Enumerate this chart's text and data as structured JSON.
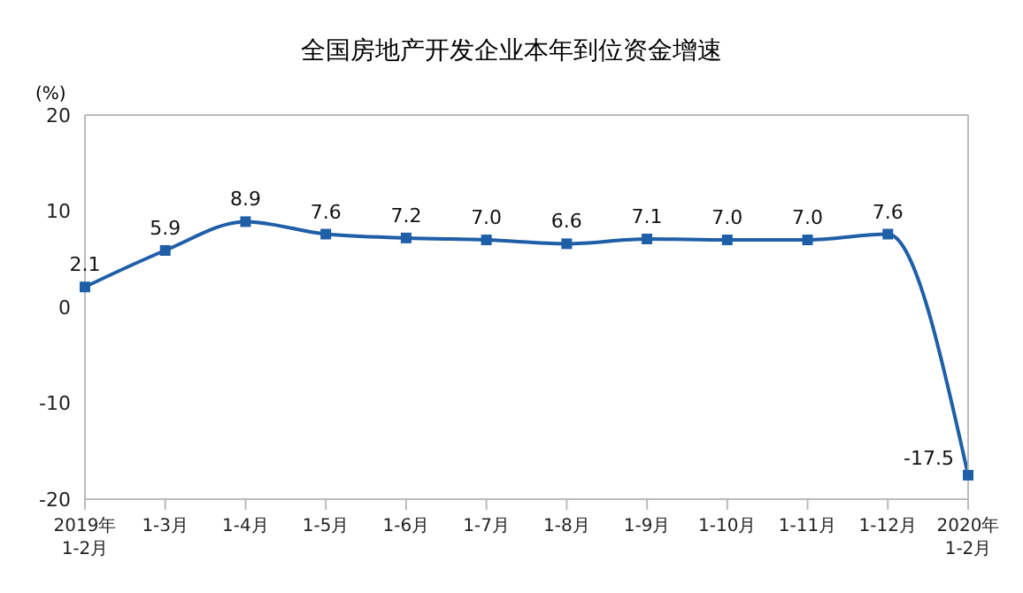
{
  "chart_data": {
    "type": "line",
    "title": "全国房地产开发企业本年到位资金增速",
    "ylabel": "(%)",
    "categories": [
      "2019年\n1-2月",
      "1-3月",
      "1-4月",
      "1-5月",
      "1-6月",
      "1-7月",
      "1-8月",
      "1-9月",
      "1-10月",
      "1-11月",
      "1-12月",
      "2020年\n1-2月"
    ],
    "series": [
      {
        "color": "#1f5fa8",
        "values": [
          2.1,
          5.9,
          8.9,
          7.6,
          7.2,
          7.0,
          6.6,
          7.1,
          7.0,
          7.0,
          7.6,
          -17.5
        ],
        "value_labels": [
          "2.1",
          "5.9",
          "8.9",
          "7.6",
          "7.2",
          "7.0",
          "6.6",
          "7.1",
          "7.0",
          "7.0",
          "7.6",
          "-17.5"
        ]
      }
    ],
    "ylim": [
      -20,
      20
    ],
    "yticks": [
      -20,
      -10,
      0,
      10,
      20
    ],
    "grid": false,
    "legend": false,
    "marker": "square",
    "line_style": "solid"
  }
}
